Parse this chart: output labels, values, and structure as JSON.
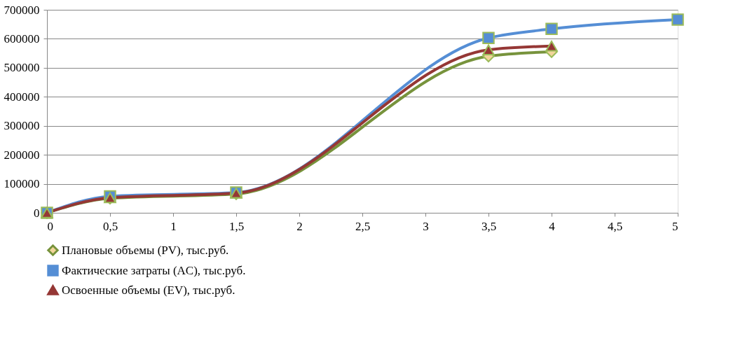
{
  "chart_data": {
    "type": "line",
    "xlim": [
      0,
      5
    ],
    "xticks": [
      0,
      {
        "value": 0.5,
        "label": "0,5"
      },
      1,
      {
        "value": 1.5,
        "label": "1,5"
      },
      2,
      {
        "value": 2.5,
        "label": "2,5"
      },
      3,
      {
        "value": 3.5,
        "label": "3,5"
      },
      4,
      {
        "value": 4.5,
        "label": "4,5"
      },
      5
    ],
    "ylim": [
      0,
      700000
    ],
    "yticks": [
      0,
      100000,
      200000,
      300000,
      400000,
      500000,
      600000,
      700000
    ],
    "grid": "y",
    "legend": "bottom",
    "line_style": "solid",
    "series": [
      {
        "name": "Плановые объемы (PV), тыс.руб.",
        "color": "#77933c",
        "marker": "diamond",
        "x": [
          0,
          0.5,
          1.5,
          3.5,
          4
        ],
        "values": [
          0,
          50000,
          65000,
          540000,
          555000
        ]
      },
      {
        "name": "Фактические затраты (AC), тыс.руб.",
        "color": "#558ed5",
        "marker": "square",
        "x": [
          0,
          0.5,
          1.5,
          3.5,
          4,
          5
        ],
        "values": [
          0,
          57000,
          70000,
          603000,
          634000,
          666000
        ]
      },
      {
        "name": "Освоенные объемы (EV), тыс.руб.",
        "color": "#953735",
        "marker": "triangle",
        "x": [
          0,
          0.5,
          1.5,
          3.5,
          4
        ],
        "values": [
          0,
          52000,
          68000,
          562000,
          575000
        ]
      }
    ]
  }
}
